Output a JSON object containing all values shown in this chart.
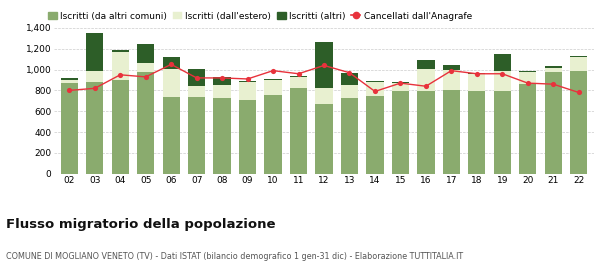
{
  "years": [
    "02",
    "03",
    "04",
    "05",
    "06",
    "07",
    "08",
    "09",
    "10",
    "11",
    "12",
    "13",
    "14",
    "15",
    "16",
    "17",
    "18",
    "19",
    "20",
    "21",
    "22"
  ],
  "iscritti_altri_comuni": [
    870,
    880,
    900,
    980,
    740,
    740,
    730,
    710,
    760,
    820,
    670,
    730,
    750,
    790,
    790,
    800,
    790,
    790,
    860,
    980,
    990
  ],
  "iscritti_estero": [
    30,
    110,
    270,
    80,
    270,
    100,
    120,
    170,
    140,
    110,
    150,
    120,
    130,
    80,
    220,
    200,
    170,
    200,
    120,
    40,
    130
  ],
  "iscritti_altri": [
    20,
    360,
    20,
    190,
    110,
    170,
    80,
    10,
    10,
    10,
    450,
    120,
    10,
    10,
    80,
    40,
    10,
    160,
    10,
    10,
    10
  ],
  "cancellati": [
    800,
    820,
    950,
    930,
    1050,
    920,
    920,
    910,
    990,
    960,
    1040,
    970,
    790,
    870,
    840,
    990,
    960,
    960,
    870,
    860,
    780
  ],
  "color_altri_comuni": "#8aab6e",
  "color_estero": "#e8f0d0",
  "color_altri": "#2d5e28",
  "color_cancellati": "#e8323c",
  "legend_labels": [
    "Iscritti (da altri comuni)",
    "Iscritti (dall'estero)",
    "Iscritti (altri)",
    "Cancellati dall'Anagrafe"
  ],
  "ylim": [
    0,
    1400
  ],
  "yticks": [
    0,
    200,
    400,
    600,
    800,
    1000,
    1200,
    1400
  ],
  "ytick_labels": [
    "0",
    "200",
    "400",
    "600",
    "800",
    "1,000",
    "1,200",
    "1,400"
  ],
  "background_color": "#ffffff",
  "grid_color": "#cccccc",
  "title": "Flusso migratorio della popolazione",
  "subtitle": "COMUNE DI MOGLIANO VENETO (TV) - Dati ISTAT (bilancio demografico 1 gen-31 dic) - Elaborazione TUTTITALIA.IT"
}
